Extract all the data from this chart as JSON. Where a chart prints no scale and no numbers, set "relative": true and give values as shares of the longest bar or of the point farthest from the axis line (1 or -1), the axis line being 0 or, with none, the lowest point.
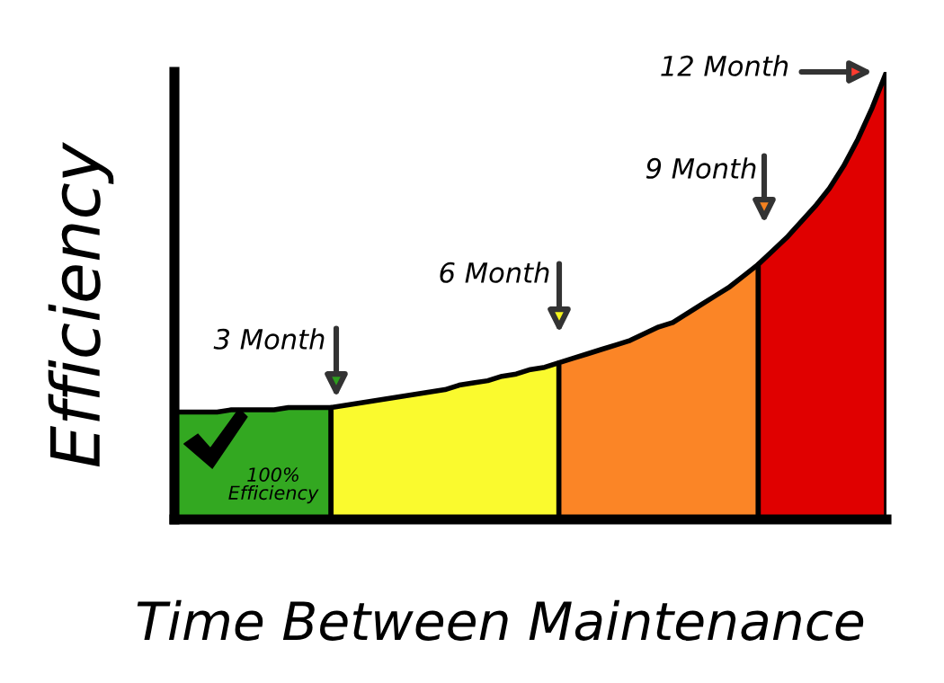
{
  "chart_data": {
    "type": "area",
    "relative": true,
    "xlabel": "Time Between Maintenance",
    "ylabel": "Efficiency",
    "categories": [
      null,
      null,
      null,
      null,
      null,
      null,
      null,
      null,
      null,
      null,
      null,
      null,
      null,
      null,
      null,
      null,
      null,
      null,
      null,
      null,
      null,
      null,
      null,
      null,
      null,
      null,
      null,
      null,
      null,
      null,
      null,
      null,
      null,
      null,
      null,
      null,
      null,
      null,
      null,
      null,
      null,
      null,
      null,
      null,
      null,
      null,
      null,
      null,
      null,
      null,
      null
    ],
    "series": [
      {
        "color": "#33a821",
        "values": [
          0.24,
          0.24,
          0.24,
          0.24,
          0.245,
          0.245,
          0.245,
          0.245,
          0.25,
          0.25,
          0.25,
          0.25,
          null,
          null,
          null,
          null,
          null,
          null,
          null,
          null,
          null,
          null,
          null,
          null,
          null,
          null,
          null,
          null,
          null,
          null,
          null,
          null,
          null,
          null,
          null,
          null,
          null,
          null,
          null,
          null,
          null,
          null,
          null,
          null,
          null,
          null,
          null,
          null,
          null,
          null,
          null
        ]
      },
      {
        "color": "#fafa2e",
        "values": [
          null,
          null,
          null,
          null,
          null,
          null,
          null,
          null,
          null,
          null,
          null,
          0.25,
          0.255,
          0.26,
          0.265,
          0.27,
          0.275,
          0.28,
          0.285,
          0.29,
          0.3,
          0.305,
          0.31,
          0.32,
          0.325,
          0.335,
          0.34,
          0.35,
          null,
          null,
          null,
          null,
          null,
          null,
          null,
          null,
          null,
          null,
          null,
          null,
          null,
          null,
          null,
          null,
          null,
          null,
          null,
          null,
          null,
          null,
          null
        ]
      },
      {
        "color": "#fb8526",
        "values": [
          null,
          null,
          null,
          null,
          null,
          null,
          null,
          null,
          null,
          null,
          null,
          null,
          null,
          null,
          null,
          null,
          null,
          null,
          null,
          null,
          null,
          null,
          null,
          null,
          null,
          null,
          null,
          0.35,
          0.36,
          0.37,
          0.38,
          0.39,
          0.4,
          0.415,
          0.43,
          0.44,
          0.46,
          0.48,
          0.5,
          0.52,
          0.545,
          0.57,
          null,
          null,
          null,
          null,
          null,
          null,
          null,
          null,
          null
        ]
      },
      {
        "color": "#e00000",
        "values": [
          null,
          null,
          null,
          null,
          null,
          null,
          null,
          null,
          null,
          null,
          null,
          null,
          null,
          null,
          null,
          null,
          null,
          null,
          null,
          null,
          null,
          null,
          null,
          null,
          null,
          null,
          null,
          null,
          null,
          null,
          null,
          null,
          null,
          null,
          null,
          null,
          null,
          null,
          null,
          null,
          null,
          0.57,
          0.6,
          0.63,
          0.665,
          0.7,
          0.74,
          0.79,
          0.85,
          0.92,
          1.0
        ]
      }
    ],
    "annotations": [
      "3 Month",
      "6 Month",
      "9 Month",
      "12 Month",
      "100% Efficiency"
    ]
  }
}
